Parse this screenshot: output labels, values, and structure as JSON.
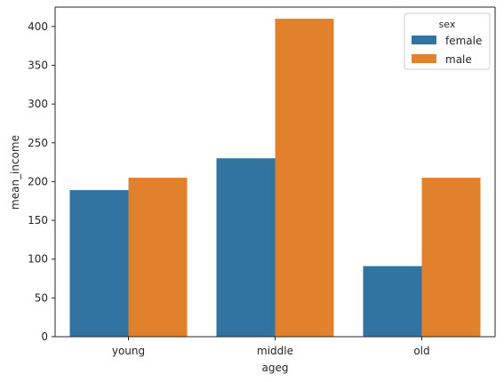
{
  "chart_data": {
    "type": "bar",
    "title": "",
    "xlabel": "ageg",
    "ylabel": "mean_income",
    "categories": [
      "young",
      "middle",
      "old"
    ],
    "ylim": [
      0,
      425
    ],
    "yticks": [
      0,
      50,
      100,
      150,
      200,
      250,
      300,
      350,
      400
    ],
    "grid": false,
    "series": [
      {
        "name": "female",
        "color": "#3274a1",
        "values": [
          189,
          230,
          91
        ]
      },
      {
        "name": "male",
        "color": "#e1812c",
        "values": [
          205,
          410,
          205
        ]
      }
    ],
    "legend": {
      "title": "sex",
      "placement": "top-right"
    }
  }
}
